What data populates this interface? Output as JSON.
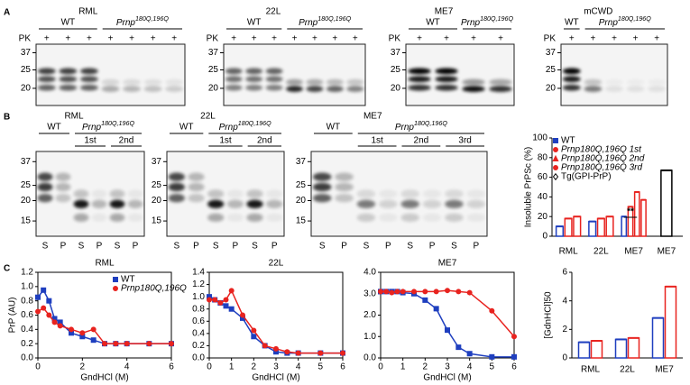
{
  "panel_labels": [
    "A",
    "B",
    "C"
  ],
  "blots_a": [
    {
      "title": "RML",
      "pk_label": "PK",
      "markers": [
        "37",
        "25",
        "20"
      ],
      "groups": [
        {
          "label": "WT",
          "lanes": [
            "+",
            "+",
            "+"
          ]
        },
        {
          "label": {
            "gene": "Prnp",
            "allele": "180Q,196Q"
          },
          "lanes": [
            "+",
            "+",
            "+",
            "+"
          ]
        }
      ]
    },
    {
      "title": "22L",
      "pk_label": "PK",
      "markers": [
        "37",
        "25",
        "20"
      ],
      "groups": [
        {
          "label": "WT",
          "lanes": [
            "+",
            "+",
            "+"
          ]
        },
        {
          "label": {
            "gene": "Prnp",
            "allele": "180Q,196Q"
          },
          "lanes": [
            "+",
            "+",
            "+",
            "+"
          ]
        }
      ]
    },
    {
      "title": "ME7",
      "pk_label": "PK",
      "markers": [
        "37",
        "25",
        "20"
      ],
      "groups": [
        {
          "label": "WT",
          "lanes": [
            "+",
            "+"
          ]
        },
        {
          "label": {
            "gene": "Prnp",
            "allele": "180Q,196Q"
          },
          "lanes": [
            "+",
            "+"
          ]
        }
      ]
    },
    {
      "title": "mCWD",
      "pk_label": "PK",
      "markers": [
        "37",
        "25",
        "20"
      ],
      "groups": [
        {
          "label": "WT",
          "lanes": [
            "+"
          ]
        },
        {
          "label": {
            "gene": "Prnp",
            "allele": "180Q,196Q"
          },
          "lanes": [
            "+",
            "+",
            "+",
            "+"
          ]
        }
      ]
    }
  ],
  "blots_b": [
    {
      "title": "RML",
      "markers": [
        "37",
        "25",
        "20",
        "15"
      ],
      "groups": [
        {
          "label": "WT",
          "lanes": [
            "S",
            "P"
          ]
        },
        {
          "label": {
            "gene": "Prnp",
            "allele": "180Q,196Q"
          },
          "subgroups": [
            {
              "label": "1st",
              "lanes": [
                "S",
                "P"
              ]
            },
            {
              "label": "2nd",
              "lanes": [
                "S",
                "P"
              ]
            }
          ]
        }
      ]
    },
    {
      "title": "22L",
      "markers": [
        "37",
        "25",
        "20",
        "15"
      ],
      "groups": [
        {
          "label": "WT",
          "lanes": [
            "S",
            "P"
          ]
        },
        {
          "label": {
            "gene": "Prnp",
            "allele": "180Q,196Q"
          },
          "subgroups": [
            {
              "label": "1st",
              "lanes": [
                "S",
                "P"
              ]
            },
            {
              "label": "2nd",
              "lanes": [
                "S",
                "P"
              ]
            }
          ]
        }
      ]
    },
    {
      "title": "ME7",
      "markers": [
        "37",
        "25",
        "20",
        "15"
      ],
      "groups": [
        {
          "label": "WT",
          "lanes": [
            "S",
            "P"
          ]
        },
        {
          "label": {
            "gene": "Prnp",
            "allele": "180Q,196Q"
          },
          "subgroups": [
            {
              "label": "1st",
              "lanes": [
                "S",
                "P"
              ]
            },
            {
              "label": "2nd",
              "lanes": [
                "S",
                "P"
              ]
            },
            {
              "label": "3rd",
              "lanes": [
                "S",
                "P"
              ]
            }
          ]
        }
      ]
    }
  ],
  "chart_data": [
    {
      "type": "bar",
      "ylabel": "Insoluble PrPSc (%)",
      "categories": [
        "RML",
        "22L",
        "ME7",
        "ME7"
      ],
      "ylim": [
        0,
        100
      ],
      "yticks": [
        0,
        20,
        40,
        60,
        80,
        100
      ],
      "legend": "upper left",
      "annotation": "**",
      "series": [
        {
          "name": "WT",
          "color": "#1f3fbf",
          "marker": "square",
          "values": [
            10,
            15,
            20,
            null
          ]
        },
        {
          "name": "Prnp180Q,196Q 1st",
          "color": "#e8231f",
          "marker": "circle",
          "values": [
            18,
            18,
            30,
            null
          ]
        },
        {
          "name": "Prnp180Q,196Q 2nd",
          "color": "#e8231f",
          "marker": "triangle",
          "values": [
            20,
            20,
            45,
            null
          ]
        },
        {
          "name": "Prnp180Q,196Q 3rd",
          "color": "#e8231f",
          "marker": "circle",
          "values": [
            null,
            null,
            37,
            null
          ]
        },
        {
          "name": "Tg(GPI-PrP)",
          "color": "#000000",
          "marker": "diamond",
          "values": [
            null,
            null,
            null,
            67
          ]
        }
      ]
    },
    {
      "type": "line",
      "title": "RML",
      "xlabel": "GndHCl (M)",
      "ylabel": "PrP (AU)",
      "xlim": [
        0,
        6
      ],
      "xticks": [
        0,
        2,
        4,
        6
      ],
      "ylim": [
        0,
        1.2
      ],
      "yticks": [
        {
          "value": 0,
          "label": "0.0"
        },
        0.2,
        0.4,
        0.6,
        0.8,
        {
          "value": 1,
          "label": "1.0"
        },
        1.2
      ],
      "legend": "upper right",
      "x": [
        0,
        0.25,
        0.5,
        0.75,
        1,
        1.5,
        2,
        2.5,
        3,
        3.5,
        4,
        5,
        6
      ],
      "series": [
        {
          "name": "WT",
          "color": "#1f3fbf",
          "marker": "square",
          "values": [
            0.85,
            0.95,
            0.8,
            0.55,
            0.5,
            0.35,
            0.3,
            0.25,
            0.2,
            0.2,
            0.2,
            0.2,
            0.2
          ]
        },
        {
          "name": "Prnp180Q,196Q",
          "color": "#e8231f",
          "marker": "circle",
          "values": [
            0.65,
            0.7,
            0.6,
            0.5,
            0.45,
            0.4,
            0.35,
            0.4,
            0.2,
            0.2,
            0.2,
            0.2,
            0.2
          ]
        }
      ]
    },
    {
      "type": "line",
      "title": "22L",
      "xlabel": "GndHCl (M)",
      "xlim": [
        0,
        6
      ],
      "xticks": [
        0,
        1,
        2,
        3,
        4,
        5,
        6
      ],
      "ylim": [
        0,
        1.4
      ],
      "yticks": [
        {
          "value": 0,
          "label": "0.0"
        },
        0.2,
        0.4,
        0.6,
        0.8,
        {
          "value": 1,
          "label": "1.0"
        },
        1.2,
        1.4
      ],
      "x": [
        0,
        0.25,
        0.5,
        0.75,
        1,
        1.5,
        2,
        2.5,
        3,
        3.5,
        4,
        5,
        6
      ],
      "series": [
        {
          "color": "#1f3fbf",
          "marker": "square",
          "values": [
            1.0,
            0.95,
            0.9,
            0.85,
            0.8,
            0.65,
            0.35,
            0.2,
            0.1,
            0.08,
            0.08,
            0.08,
            0.08
          ]
        },
        {
          "color": "#e8231f",
          "marker": "circle",
          "values": [
            0.95,
            0.95,
            0.9,
            0.95,
            1.1,
            0.7,
            0.45,
            0.2,
            0.15,
            0.1,
            0.08,
            0.08,
            0.08
          ]
        }
      ]
    },
    {
      "type": "line",
      "title": "ME7",
      "xlabel": "GndHCl (M)",
      "xlim": [
        0,
        6
      ],
      "xticks": [
        0,
        1,
        2,
        3,
        4,
        5,
        6
      ],
      "ylim": [
        0,
        4
      ],
      "yticks": [
        {
          "value": 0,
          "label": "0.0"
        },
        {
          "value": 1,
          "label": "1.0"
        },
        {
          "value": 2,
          "label": "2.0"
        },
        {
          "value": 3,
          "label": "3.0"
        },
        {
          "value": 4,
          "label": "4.0"
        }
      ],
      "x": [
        0,
        0.25,
        0.5,
        0.75,
        1,
        1.5,
        2,
        2.5,
        3,
        3.5,
        4,
        5,
        6
      ],
      "series": [
        {
          "color": "#1f3fbf",
          "marker": "square",
          "values": [
            3.1,
            3.1,
            3.1,
            3.1,
            3.05,
            3.0,
            2.7,
            2.3,
            1.3,
            0.5,
            0.2,
            0.05,
            0.05
          ]
        },
        {
          "color": "#e8231f",
          "marker": "circle",
          "values": [
            3.1,
            3.1,
            3.05,
            3.1,
            3.1,
            3.1,
            3.1,
            3.1,
            3.15,
            3.1,
            3.05,
            2.2,
            1.0
          ]
        }
      ]
    },
    {
      "type": "bar",
      "ylabel": "[GdnHCl]50",
      "categories": [
        "RML",
        "22L",
        "ME7"
      ],
      "ylim": [
        0,
        6
      ],
      "yticks": [
        0,
        2,
        4,
        6
      ],
      "series": [
        {
          "color": "#1f3fbf",
          "marker": "square",
          "values": [
            1.1,
            1.3,
            2.8
          ]
        },
        {
          "color": "#e8231f",
          "marker": "circle",
          "values": [
            1.2,
            1.4,
            5.0
          ]
        }
      ]
    }
  ]
}
